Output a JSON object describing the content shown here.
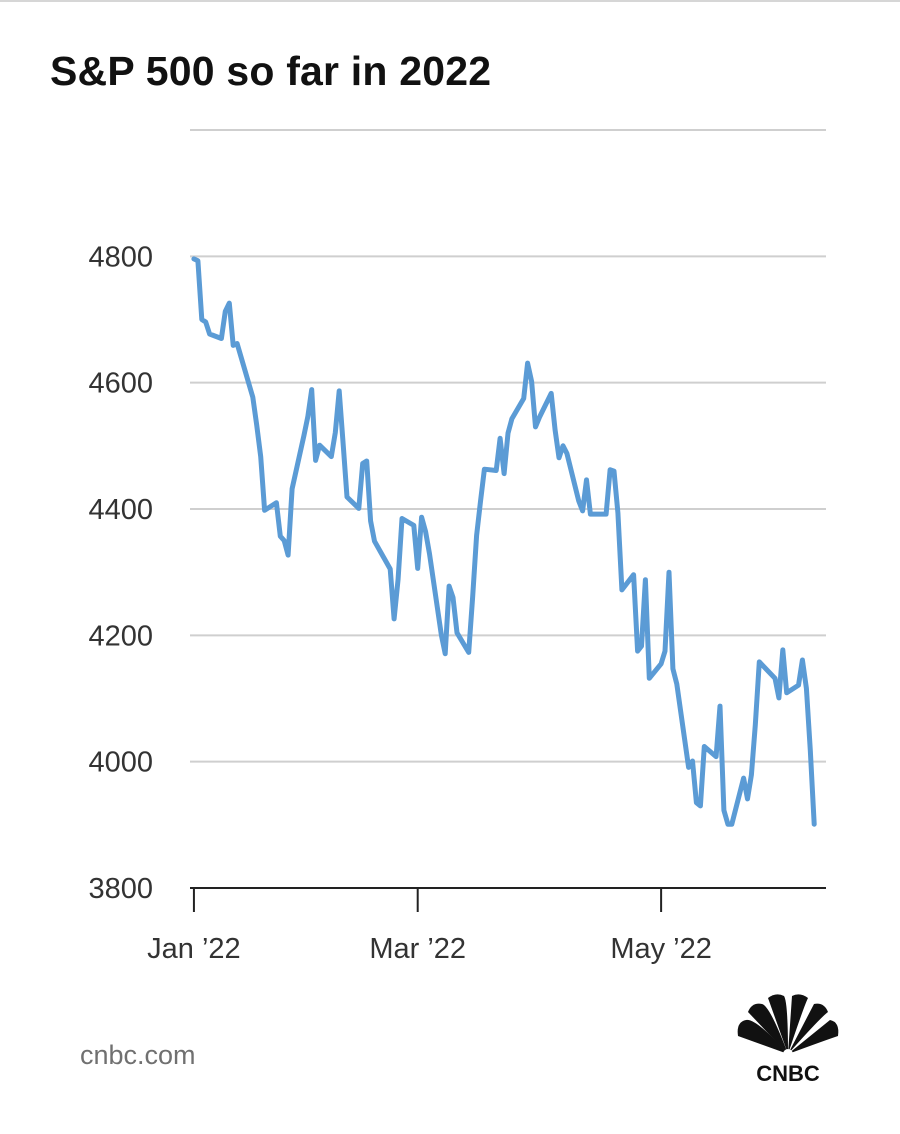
{
  "chart_data": {
    "type": "line",
    "title": "S&P 500 so far in 2022",
    "xlabel": "",
    "ylabel": "",
    "x_tick_labels": [
      {
        "label": "Jan ’22",
        "date": "2022-01-03"
      },
      {
        "label": "Mar ’22",
        "date": "2022-03-01"
      },
      {
        "label": "May ’22",
        "date": "2022-05-02"
      }
    ],
    "y_ticks": [
      3800,
      4000,
      4200,
      4400,
      4600,
      4800
    ],
    "ylim": [
      3800,
      5000
    ],
    "xlim": [
      "2022-01-02",
      "2022-06-13"
    ],
    "grid": true,
    "series_color": "#5b9bd5",
    "series": [
      {
        "values": [
          [
            "2022-01-03",
            4796
          ],
          [
            "2022-01-04",
            4793
          ],
          [
            "2022-01-05",
            4700
          ],
          [
            "2022-01-06",
            4696
          ],
          [
            "2022-01-07",
            4677
          ],
          [
            "2022-01-10",
            4670
          ],
          [
            "2022-01-11",
            4713
          ],
          [
            "2022-01-12",
            4726
          ],
          [
            "2022-01-13",
            4659
          ],
          [
            "2022-01-14",
            4662
          ],
          [
            "2022-01-18",
            4577
          ],
          [
            "2022-01-19",
            4533
          ],
          [
            "2022-01-20",
            4483
          ],
          [
            "2022-01-21",
            4398
          ],
          [
            "2022-01-24",
            4410
          ],
          [
            "2022-01-25",
            4357
          ],
          [
            "2022-01-26",
            4350
          ],
          [
            "2022-01-27",
            4327
          ],
          [
            "2022-01-28",
            4432
          ],
          [
            "2022-01-31",
            4516
          ],
          [
            "2022-02-01",
            4546
          ],
          [
            "2022-02-02",
            4589
          ],
          [
            "2022-02-03",
            4477
          ],
          [
            "2022-02-04",
            4501
          ],
          [
            "2022-02-07",
            4483
          ],
          [
            "2022-02-08",
            4521
          ],
          [
            "2022-02-09",
            4587
          ],
          [
            "2022-02-10",
            4504
          ],
          [
            "2022-02-11",
            4419
          ],
          [
            "2022-02-14",
            4401
          ],
          [
            "2022-02-15",
            4472
          ],
          [
            "2022-02-16",
            4476
          ],
          [
            "2022-02-17",
            4381
          ],
          [
            "2022-02-18",
            4349
          ],
          [
            "2022-02-22",
            4305
          ],
          [
            "2022-02-23",
            4226
          ],
          [
            "2022-02-24",
            4289
          ],
          [
            "2022-02-25",
            4385
          ],
          [
            "2022-02-28",
            4374
          ],
          [
            "2022-03-01",
            4306
          ],
          [
            "2022-03-02",
            4387
          ],
          [
            "2022-03-03",
            4364
          ],
          [
            "2022-03-04",
            4329
          ],
          [
            "2022-03-07",
            4201
          ],
          [
            "2022-03-08",
            4171
          ],
          [
            "2022-03-09",
            4278
          ],
          [
            "2022-03-10",
            4260
          ],
          [
            "2022-03-11",
            4204
          ],
          [
            "2022-03-14",
            4173
          ],
          [
            "2022-03-15",
            4262
          ],
          [
            "2022-03-16",
            4358
          ],
          [
            "2022-03-17",
            4412
          ],
          [
            "2022-03-18",
            4463
          ],
          [
            "2022-03-21",
            4461
          ],
          [
            "2022-03-22",
            4512
          ],
          [
            "2022-03-23",
            4456
          ],
          [
            "2022-03-24",
            4520
          ],
          [
            "2022-03-25",
            4543
          ],
          [
            "2022-03-28",
            4575
          ],
          [
            "2022-03-29",
            4631
          ],
          [
            "2022-03-30",
            4602
          ],
          [
            "2022-03-31",
            4530
          ],
          [
            "2022-04-01",
            4545
          ],
          [
            "2022-04-04",
            4583
          ],
          [
            "2022-04-05",
            4525
          ],
          [
            "2022-04-06",
            4481
          ],
          [
            "2022-04-07",
            4500
          ],
          [
            "2022-04-08",
            4488
          ],
          [
            "2022-04-11",
            4413
          ],
          [
            "2022-04-12",
            4397
          ],
          [
            "2022-04-13",
            4446
          ],
          [
            "2022-04-14",
            4392
          ],
          [
            "2022-04-18",
            4392
          ],
          [
            "2022-04-19",
            4462
          ],
          [
            "2022-04-20",
            4460
          ],
          [
            "2022-04-21",
            4394
          ],
          [
            "2022-04-22",
            4272
          ],
          [
            "2022-04-25",
            4296
          ],
          [
            "2022-04-26",
            4175
          ],
          [
            "2022-04-27",
            4183
          ],
          [
            "2022-04-28",
            4288
          ],
          [
            "2022-04-29",
            4132
          ],
          [
            "2022-05-02",
            4155
          ],
          [
            "2022-05-03",
            4175
          ],
          [
            "2022-05-04",
            4300
          ],
          [
            "2022-05-05",
            4147
          ],
          [
            "2022-05-06",
            4123
          ],
          [
            "2022-05-09",
            3991
          ],
          [
            "2022-05-10",
            4001
          ],
          [
            "2022-05-11",
            3935
          ],
          [
            "2022-05-12",
            3930
          ],
          [
            "2022-05-13",
            4024
          ],
          [
            "2022-05-16",
            4008
          ],
          [
            "2022-05-17",
            4088
          ],
          [
            "2022-05-18",
            3923
          ],
          [
            "2022-05-19",
            3901
          ],
          [
            "2022-05-20",
            3901
          ],
          [
            "2022-05-23",
            3974
          ],
          [
            "2022-05-24",
            3941
          ],
          [
            "2022-05-25",
            3979
          ],
          [
            "2022-05-26",
            4058
          ],
          [
            "2022-05-27",
            4158
          ],
          [
            "2022-05-31",
            4132
          ],
          [
            "2022-06-01",
            4101
          ],
          [
            "2022-06-02",
            4177
          ],
          [
            "2022-06-03",
            4109
          ],
          [
            "2022-06-06",
            4121
          ],
          [
            "2022-06-07",
            4161
          ],
          [
            "2022-06-08",
            4116
          ],
          [
            "2022-06-09",
            4018
          ],
          [
            "2022-06-10",
            3901
          ]
        ]
      }
    ]
  },
  "footer": {
    "source": "cnbc.com",
    "logo_text": "CNBC"
  }
}
